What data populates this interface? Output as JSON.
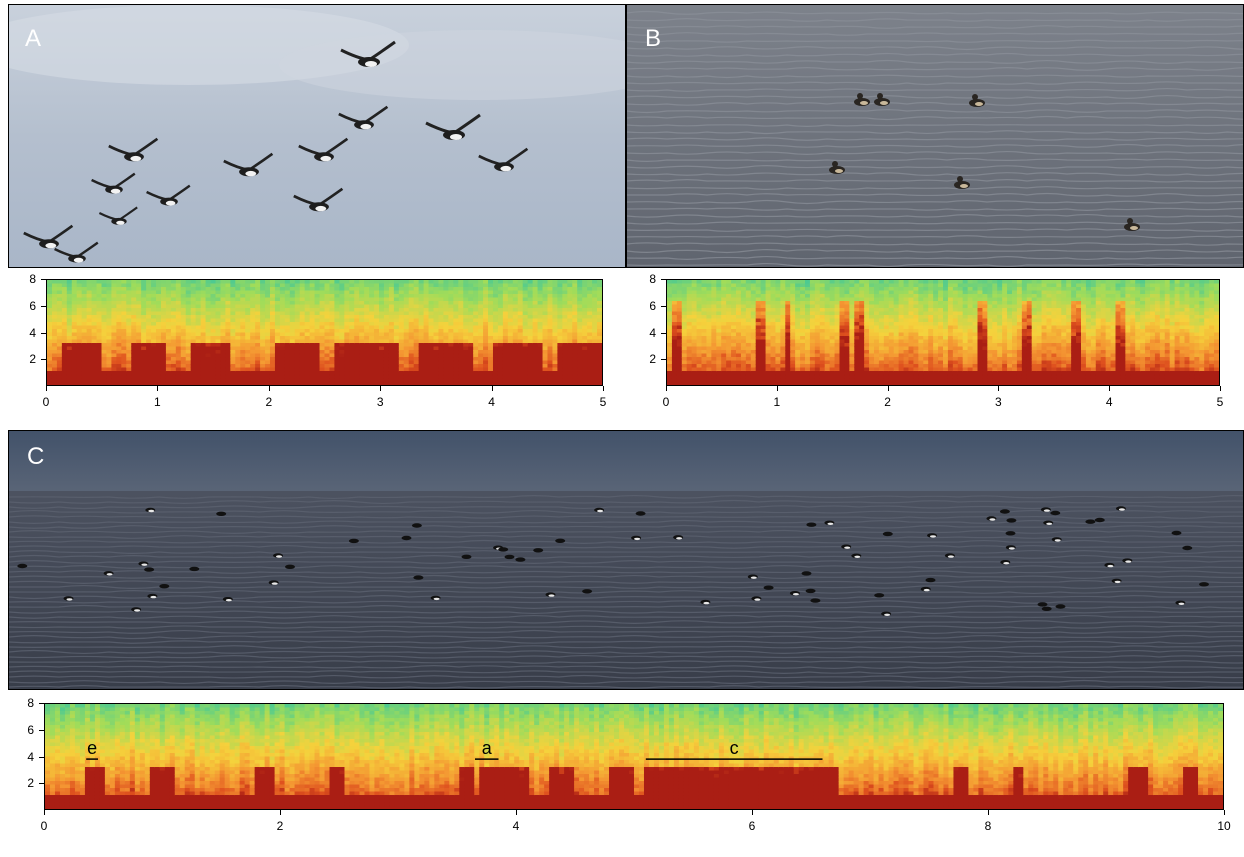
{
  "panels": {
    "a": {
      "letter": "A"
    },
    "b": {
      "letter": "B"
    },
    "c": {
      "letter": "C"
    }
  },
  "chart_data": [
    {
      "type": "heatmap",
      "panel": "A",
      "title": "",
      "xlabel": "",
      "ylabel": "",
      "xlim": [
        0,
        5
      ],
      "ylim": [
        0,
        8
      ],
      "x_ticks": [
        "0",
        "1",
        "2",
        "3",
        "4",
        "5"
      ],
      "y_ticks": [
        "2",
        "4",
        "6",
        "8"
      ],
      "annotations": []
    },
    {
      "type": "heatmap",
      "panel": "B",
      "title": "",
      "xlabel": "",
      "ylabel": "",
      "xlim": [
        0,
        5
      ],
      "ylim": [
        0,
        8
      ],
      "x_ticks": [
        "0",
        "1",
        "2",
        "3",
        "4",
        "5"
      ],
      "y_ticks": [
        "2",
        "4",
        "6",
        "8"
      ],
      "annotations": []
    },
    {
      "type": "heatmap",
      "panel": "C",
      "title": "",
      "xlabel": "",
      "ylabel": "",
      "xlim": [
        0,
        10
      ],
      "ylim": [
        0,
        8
      ],
      "x_ticks": [
        "0",
        "2",
        "4",
        "6",
        "8",
        "10"
      ],
      "y_ticks": [
        "2",
        "4",
        "6",
        "8"
      ],
      "annotations": [
        {
          "label": "e",
          "x_start": 0.35,
          "x_end": 0.45,
          "y": 3.8
        },
        {
          "label": "a",
          "x_start": 3.65,
          "x_end": 3.85,
          "y": 3.8
        },
        {
          "label": "c",
          "x_start": 5.1,
          "x_end": 6.6,
          "y": 3.8
        }
      ]
    }
  ],
  "colors": {
    "sky": "#b8c3d2",
    "sea_b": "#6e737d",
    "sea_c": "#3f4452",
    "spec_low": "#d8451c",
    "spec_mid": "#f4c52c",
    "spec_high": "#3cc28c"
  }
}
